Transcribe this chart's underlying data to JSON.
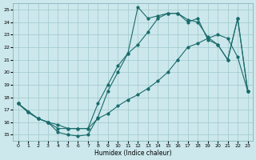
{
  "xlabel": "Humidex (Indice chaleur)",
  "bg_color": "#cce8ec",
  "grid_color": "#9fc8cc",
  "line_color": "#1a6b6b",
  "xlim": [
    -0.5,
    23.5
  ],
  "ylim": [
    14.5,
    25.5
  ],
  "xticks": [
    0,
    1,
    2,
    3,
    4,
    5,
    6,
    7,
    8,
    9,
    10,
    11,
    12,
    13,
    14,
    15,
    16,
    17,
    18,
    19,
    20,
    21,
    22,
    23
  ],
  "yticks": [
    15,
    16,
    17,
    18,
    19,
    20,
    21,
    22,
    23,
    24,
    25
  ],
  "line1_x": [
    0,
    1,
    2,
    3,
    4,
    5,
    6,
    7,
    8,
    9,
    10,
    11,
    12,
    13,
    14,
    15,
    16,
    17,
    18,
    19,
    20,
    21,
    22,
    23
  ],
  "line1_y": [
    17.5,
    16.8,
    16.3,
    16.0,
    15.2,
    15.0,
    14.9,
    15.0,
    16.4,
    18.5,
    20.0,
    21.5,
    25.2,
    24.3,
    24.5,
    24.7,
    24.7,
    24.0,
    24.3,
    22.6,
    22.2,
    21.0,
    24.3,
    18.5
  ],
  "line2_x": [
    0,
    1,
    2,
    3,
    4,
    5,
    6,
    7,
    8,
    9,
    10,
    11,
    12,
    13,
    14,
    15,
    16,
    17,
    18,
    19,
    20,
    21,
    22,
    23
  ],
  "line2_y": [
    17.5,
    16.8,
    16.3,
    16.0,
    15.8,
    15.5,
    15.5,
    15.5,
    17.5,
    19.0,
    20.5,
    21.5,
    22.2,
    23.2,
    24.3,
    24.7,
    24.7,
    24.2,
    24.0,
    22.8,
    22.2,
    21.0,
    24.3,
    18.5
  ],
  "line3_x": [
    0,
    2,
    3,
    4,
    5,
    6,
    7,
    8,
    9,
    10,
    11,
    12,
    13,
    14,
    15,
    16,
    17,
    18,
    19,
    20,
    21,
    22,
    23
  ],
  "line3_y": [
    17.5,
    16.3,
    16.0,
    15.5,
    15.5,
    15.5,
    15.5,
    16.3,
    16.7,
    17.3,
    17.8,
    18.2,
    18.7,
    19.3,
    20.0,
    21.0,
    22.0,
    22.3,
    22.7,
    23.0,
    22.7,
    21.2,
    18.5
  ]
}
